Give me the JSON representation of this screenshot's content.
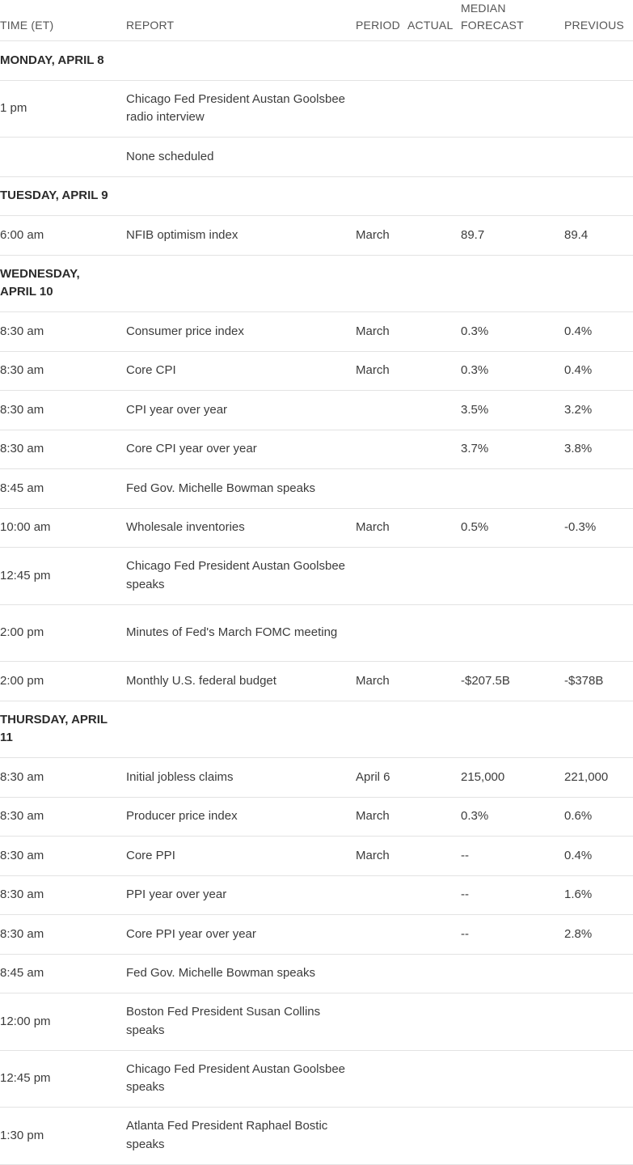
{
  "headers": {
    "time": "TIME (ET)",
    "report": "REPORT",
    "period": "PERIOD",
    "actual": "ACTUAL",
    "median": "MEDIAN FORECAST",
    "previous": "PREVIOUS"
  },
  "days": [
    {
      "label": "MONDAY, APRIL 8",
      "events": [
        {
          "time": "1 pm",
          "report": "Chicago Fed President Austan Goolsbee radio interview",
          "period": "",
          "actual": "",
          "median": "",
          "previous": ""
        },
        {
          "time": "",
          "report": "None scheduled",
          "period": "",
          "actual": "",
          "median": "",
          "previous": ""
        }
      ]
    },
    {
      "label": "TUESDAY, APRIL 9",
      "events": [
        {
          "time": "6:00 am",
          "report": "NFIB optimism index",
          "period": "March",
          "actual": "",
          "median": "89.7",
          "previous": "89.4"
        }
      ]
    },
    {
      "label": "WEDNESDAY, APRIL 10",
      "events": [
        {
          "time": "8:30 am",
          "report": "Consumer price index",
          "period": "March",
          "actual": "",
          "median": "0.3%",
          "previous": "0.4%"
        },
        {
          "time": "8:30 am",
          "report": "Core CPI",
          "period": "March",
          "actual": "",
          "median": "0.3%",
          "previous": "0.4%"
        },
        {
          "time": "8:30 am",
          "report": "CPI year over year",
          "period": "",
          "actual": "",
          "median": "3.5%",
          "previous": "3.2%"
        },
        {
          "time": "8:30 am",
          "report": "Core CPI year over year",
          "period": "",
          "actual": "",
          "median": "3.7%",
          "previous": "3.8%"
        },
        {
          "time": "8:45 am",
          "report": "Fed Gov. Michelle Bowman speaks",
          "period": "",
          "actual": "",
          "median": "",
          "previous": ""
        },
        {
          "time": "10:00 am",
          "report": "Wholesale inventories",
          "period": "March",
          "actual": "",
          "median": "0.5%",
          "previous": "-0.3%"
        },
        {
          "time": "12:45 pm",
          "report": "Chicago Fed President Austan Goolsbee speaks",
          "period": "",
          "actual": "",
          "median": "",
          "previous": ""
        },
        {
          "time": "2:00 pm",
          "report": "Minutes of Fed's March FOMC meeting",
          "period": "",
          "actual": "",
          "median": "",
          "previous": ""
        },
        {
          "time": "2:00 pm",
          "report": "Monthly U.S. federal budget",
          "period": "March",
          "actual": "",
          "median": "-$207.5B",
          "previous": "-$378B"
        }
      ]
    },
    {
      "label": "THURSDAY, APRIL 11",
      "events": [
        {
          "time": "8:30 am",
          "report": "Initial jobless claims",
          "period": "April 6",
          "actual": "",
          "median": "215,000",
          "previous": "221,000"
        },
        {
          "time": "8:30 am",
          "report": "Producer price index",
          "period": "March",
          "actual": "",
          "median": "0.3%",
          "previous": "0.6%"
        },
        {
          "time": "8:30 am",
          "report": "Core PPI",
          "period": "March",
          "actual": "",
          "median": "--",
          "previous": "0.4%"
        },
        {
          "time": "8:30 am",
          "report": "PPI year over year",
          "period": "",
          "actual": "",
          "median": "--",
          "previous": "1.6%"
        },
        {
          "time": "8:30 am",
          "report": "Core PPI year over year",
          "period": "",
          "actual": "",
          "median": "--",
          "previous": "2.8%"
        },
        {
          "time": "8:45 am",
          "report": "Fed Gov. Michelle Bowman speaks",
          "period": "",
          "actual": "",
          "median": "",
          "previous": ""
        },
        {
          "time": "12:00 pm",
          "report": "Boston Fed President Susan Collins speaks",
          "period": "",
          "actual": "",
          "median": "",
          "previous": ""
        },
        {
          "time": "12:45 pm",
          "report": "Chicago Fed President Austan Goolsbee speaks",
          "period": "",
          "actual": "",
          "median": "",
          "previous": ""
        },
        {
          "time": "1:30 pm",
          "report": "Atlanta Fed President Raphael Bostic speaks",
          "period": "",
          "actual": "",
          "median": "",
          "previous": ""
        }
      ]
    }
  ]
}
